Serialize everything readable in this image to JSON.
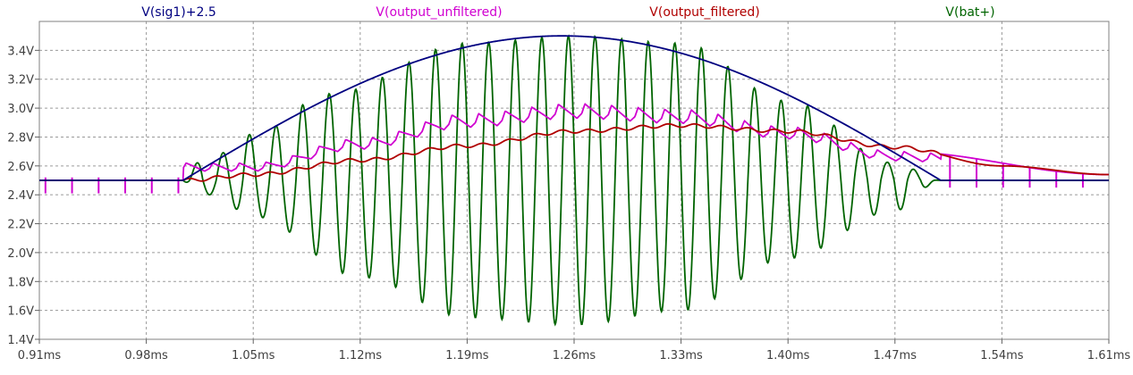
{
  "chart_data": {
    "type": "line",
    "legend": [
      {
        "name": "V(sig1)+2.5",
        "color": "#000080"
      },
      {
        "name": "V(output_unfiltered)",
        "color": "#d000d0"
      },
      {
        "name": "V(output_filtered)",
        "color": "#b00000"
      },
      {
        "name": "V(bat+)",
        "color": "#006400"
      }
    ],
    "x_unit": "ms",
    "y_unit": "V",
    "xlim": [
      0.91,
      1.61
    ],
    "ylim": [
      1.4,
      3.6
    ],
    "xticks": [
      "0.91ms",
      "0.98ms",
      "1.05ms",
      "1.12ms",
      "1.19ms",
      "1.26ms",
      "1.33ms",
      "1.40ms",
      "1.47ms",
      "1.54ms",
      "1.61ms"
    ],
    "yticks": [
      "1.4V",
      "1.6V",
      "1.8V",
      "2.0V",
      "2.2V",
      "2.4V",
      "2.6V",
      "2.8V",
      "3.0V",
      "3.2V",
      "3.4V"
    ],
    "grid": true,
    "signal": {
      "baseline_v": 2.5,
      "start_ms": 1.004,
      "end_ms": 1.5,
      "amplitude_v": 1.0,
      "carrier_period_ms": 0.0174
    },
    "series": [
      {
        "name": "V(sig1)+2.5",
        "color": "#000080",
        "points": [
          [
            0.91,
            2.5
          ],
          [
            1.004,
            2.5
          ],
          [
            1.05,
            2.8
          ],
          [
            1.12,
            3.17
          ],
          [
            1.19,
            3.41
          ],
          [
            1.26,
            3.49
          ],
          [
            1.33,
            3.38
          ],
          [
            1.4,
            3.13
          ],
          [
            1.47,
            2.68
          ],
          [
            1.5,
            2.5
          ],
          [
            1.61,
            2.5
          ]
        ]
      },
      {
        "name": "V(output_filtered)",
        "color": "#b00000",
        "points": [
          [
            0.91,
            2.5
          ],
          [
            1.004,
            2.5
          ],
          [
            1.05,
            2.54
          ],
          [
            1.12,
            2.64
          ],
          [
            1.19,
            2.74
          ],
          [
            1.26,
            2.84
          ],
          [
            1.33,
            2.88
          ],
          [
            1.4,
            2.84
          ],
          [
            1.47,
            2.73
          ],
          [
            1.54,
            2.6
          ],
          [
            1.61,
            2.54
          ]
        ]
      },
      {
        "name": "V(output_unfiltered)",
        "color": "#d000d0",
        "peaks": [
          [
            1.05,
            2.62
          ],
          [
            1.12,
            2.79
          ],
          [
            1.19,
            2.96
          ],
          [
            1.26,
            3.03
          ],
          [
            1.33,
            2.99
          ],
          [
            1.4,
            2.87
          ],
          [
            1.47,
            2.7
          ],
          [
            1.61,
            2.54
          ]
        ]
      },
      {
        "name": "V(bat+)",
        "color": "#006400",
        "peaks": [
          [
            1.022,
            2.66
          ],
          [
            1.05,
            2.82
          ],
          [
            1.1,
            3.1
          ],
          [
            1.19,
            3.45
          ],
          [
            1.26,
            3.5
          ],
          [
            1.33,
            3.45
          ],
          [
            1.4,
            3.05
          ],
          [
            1.47,
            2.62
          ],
          [
            1.5,
            2.5
          ]
        ],
        "troughs": [
          [
            1.022,
            2.4
          ],
          [
            1.05,
            2.25
          ],
          [
            1.12,
            1.83
          ],
          [
            1.19,
            1.55
          ],
          [
            1.26,
            1.5
          ],
          [
            1.33,
            1.6
          ],
          [
            1.4,
            1.96
          ],
          [
            1.47,
            2.29
          ],
          [
            1.5,
            2.5
          ]
        ]
      }
    ]
  }
}
